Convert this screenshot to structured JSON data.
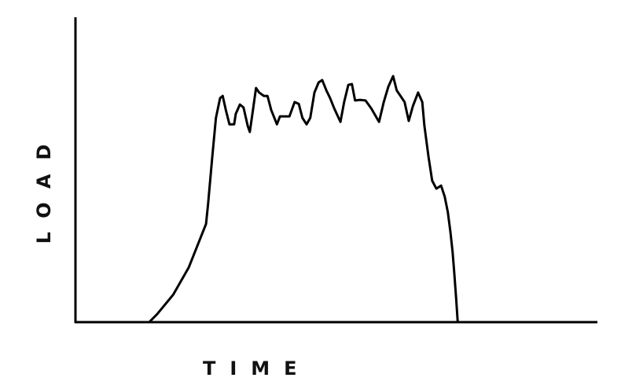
{
  "chart_data": {
    "type": "line",
    "title": "",
    "xlabel": "TIME",
    "ylabel": "LOAD",
    "xlim": [
      0,
      100
    ],
    "ylim": [
      0,
      100
    ],
    "grid": false,
    "ticks": false,
    "line_color": "#000000",
    "series": [
      {
        "x": [
          0,
          14.0,
          15.5,
          18.6,
          21.6,
          24.9,
          25.3,
          26.1,
          26.8,
          27.6,
          28.1,
          28.7,
          29.4,
          30.3,
          30.6,
          31.4,
          32.1,
          32.9,
          33.3,
          33.9,
          34.5,
          35.1,
          36.0,
          36.7,
          37.4,
          38.5,
          39.1,
          40.0,
          40.9,
          41.9,
          42.7,
          43.4,
          44.2,
          44.9,
          45.7,
          46.5,
          47.2,
          48.0,
          48.7,
          49.5,
          50.7,
          51.4,
          52.2,
          52.9,
          53.5,
          54.4,
          55.5,
          56.6,
          58.1,
          59.0,
          59.9,
          60.8,
          61.5,
          62.3,
          63.0,
          63.8,
          64.6,
          65.6,
          66.4,
          66.8,
          67.6,
          68.3,
          69.1,
          70.0,
          70.7,
          71.3,
          71.8,
          72.2,
          72.5,
          72.9,
          73.2,
          100
        ],
        "y": [
          0,
          0,
          2.6,
          9.0,
          18.0,
          32.2,
          38.7,
          54.1,
          67.0,
          73.5,
          74.2,
          69.6,
          64.9,
          64.9,
          68.3,
          71.4,
          70.4,
          64.4,
          62.4,
          69.6,
          76.8,
          75.3,
          74.2,
          74.2,
          69.6,
          64.9,
          67.5,
          67.5,
          67.5,
          72.2,
          71.6,
          67.0,
          64.9,
          67.0,
          75.3,
          78.6,
          79.4,
          76.0,
          73.5,
          70.1,
          65.7,
          72.2,
          77.8,
          78.1,
          72.7,
          72.9,
          72.7,
          70.1,
          65.7,
          72.2,
          77.3,
          80.7,
          76.0,
          74.0,
          72.2,
          66.0,
          70.9,
          75.3,
          72.2,
          64.4,
          54.1,
          46.4,
          43.8,
          44.8,
          41.2,
          36.1,
          29.6,
          23.2,
          16.8,
          7.7,
          0,
          0
        ]
      }
    ]
  }
}
